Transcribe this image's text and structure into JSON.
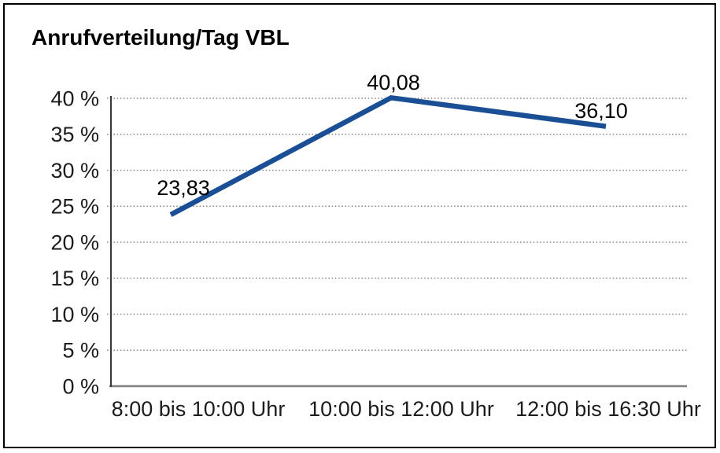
{
  "window": {
    "title": "Anrufverteilung/Tag VBL"
  },
  "chart_data": {
    "type": "line",
    "title": "Anrufverteilung/Tag VBL",
    "categories": [
      "8:00 bis 10:00 Uhr",
      "10:00 bis 12:00 Uhr",
      "12:00 bis 16:30 Uhr"
    ],
    "values": [
      23.83,
      40.08,
      36.1
    ],
    "value_labels": [
      "23,83",
      "40,08",
      "36,10"
    ],
    "xlabel": "",
    "ylabel": "",
    "ylim": [
      0,
      40
    ],
    "ytick_step": 5,
    "ytick_labels": [
      "0 %",
      "5 %",
      "10 %",
      "15 %",
      "20 %",
      "25 %",
      "30 %",
      "35 %",
      "40 %"
    ],
    "grid": "horizontal-dotted",
    "legend": "none",
    "markers": "none"
  },
  "colors": {
    "line": "#1A4F96",
    "grid": "#8C8C8C",
    "y_axis": "#3A3A3A",
    "baseline": "#7F7F7F",
    "border": "#000000",
    "text": "#1C1C1C",
    "background": "#FFFFFF"
  }
}
